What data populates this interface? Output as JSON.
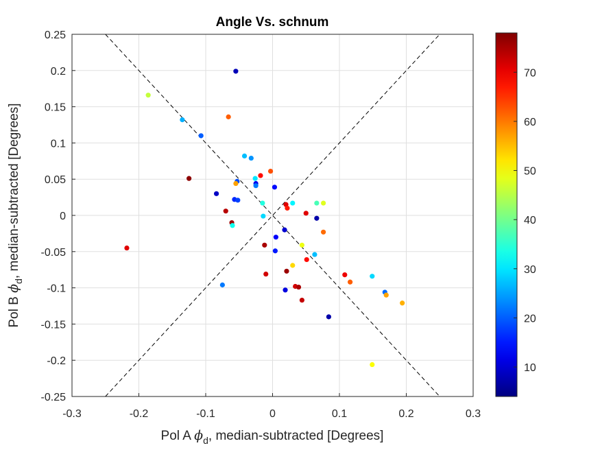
{
  "chart_data": {
    "type": "scatter",
    "title": "Angle Vs. schnum",
    "xlabel_prefix": "Pol A ",
    "xlabel_suffix": ", median-subtracted [Degrees]",
    "ylabel_prefix": "Pol B ",
    "ylabel_suffix": ", median-subtracted [Degrees]",
    "phi_symbol": "ϕ",
    "phi_subscript": "d",
    "xlim": [
      -0.3,
      0.3
    ],
    "ylim": [
      -0.25,
      0.25
    ],
    "xticks": [
      "-0.3",
      "-0.2",
      "-0.1",
      "0",
      "0.1",
      "0.2",
      "0.3"
    ],
    "xtick_values": [
      -0.3,
      -0.2,
      -0.1,
      0,
      0.1,
      0.2,
      0.3
    ],
    "yticks": [
      "0.25",
      "0.2",
      "0.15",
      "0.1",
      "0.05",
      "0",
      "-0.05",
      "-0.1",
      "-0.15",
      "-0.2",
      "-0.25"
    ],
    "ytick_values": [
      0.25,
      0.2,
      0.15,
      0.1,
      0.05,
      0,
      -0.05,
      -0.1,
      -0.15,
      -0.2,
      -0.25
    ],
    "grid": true,
    "reference_lines": [
      {
        "x": [
          -0.25,
          0.25
        ],
        "y": [
          0.25,
          -0.25
        ],
        "style": "dashed"
      },
      {
        "x": [
          -0.25,
          0.25
        ],
        "y": [
          -0.25,
          0.25
        ],
        "style": "dashed"
      }
    ],
    "colorbar": {
      "colormap": "jet",
      "range": [
        4,
        78
      ],
      "ticks": [
        "10",
        "20",
        "30",
        "40",
        "50",
        "60",
        "70"
      ],
      "tick_values": [
        10,
        20,
        30,
        40,
        50,
        60,
        70
      ]
    },
    "points": [
      {
        "x": -0.055,
        "y": 0.199,
        "c": 8
      },
      {
        "x": -0.186,
        "y": 0.166,
        "c": 46
      },
      {
        "x": -0.066,
        "y": 0.136,
        "c": 62
      },
      {
        "x": -0.135,
        "y": 0.132,
        "c": 26
      },
      {
        "x": -0.107,
        "y": 0.11,
        "c": 20
      },
      {
        "x": -0.042,
        "y": 0.082,
        "c": 27
      },
      {
        "x": -0.032,
        "y": 0.079,
        "c": 24
      },
      {
        "x": -0.125,
        "y": 0.051,
        "c": 77
      },
      {
        "x": -0.003,
        "y": 0.061,
        "c": 63
      },
      {
        "x": -0.018,
        "y": 0.055,
        "c": 68
      },
      {
        "x": -0.026,
        "y": 0.051,
        "c": 30
      },
      {
        "x": -0.053,
        "y": 0.047,
        "c": 19
      },
      {
        "x": -0.055,
        "y": 0.044,
        "c": 57
      },
      {
        "x": -0.025,
        "y": 0.044,
        "c": 12
      },
      {
        "x": -0.025,
        "y": 0.041,
        "c": 22
      },
      {
        "x": 0.003,
        "y": 0.039,
        "c": 14
      },
      {
        "x": -0.084,
        "y": 0.03,
        "c": 9
      },
      {
        "x": -0.057,
        "y": 0.022,
        "c": 16
      },
      {
        "x": -0.052,
        "y": 0.021,
        "c": 18
      },
      {
        "x": -0.015,
        "y": 0.017,
        "c": 34
      },
      {
        "x": 0.02,
        "y": 0.015,
        "c": 71
      },
      {
        "x": 0.022,
        "y": 0.01,
        "c": 67
      },
      {
        "x": 0.03,
        "y": 0.017,
        "c": 31
      },
      {
        "x": 0.066,
        "y": 0.017,
        "c": 37
      },
      {
        "x": 0.076,
        "y": 0.017,
        "c": 48
      },
      {
        "x": -0.07,
        "y": 0.006,
        "c": 74
      },
      {
        "x": 0.05,
        "y": 0.003,
        "c": 71
      },
      {
        "x": -0.014,
        "y": -0.001,
        "c": 29
      },
      {
        "x": 0.066,
        "y": -0.004,
        "c": 7
      },
      {
        "x": -0.061,
        "y": -0.01,
        "c": 76
      },
      {
        "x": -0.06,
        "y": -0.014,
        "c": 33
      },
      {
        "x": 0.018,
        "y": -0.02,
        "c": 10
      },
      {
        "x": 0.076,
        "y": -0.023,
        "c": 61
      },
      {
        "x": 0.005,
        "y": -0.03,
        "c": 13
      },
      {
        "x": -0.012,
        "y": -0.041,
        "c": 75
      },
      {
        "x": 0.044,
        "y": -0.041,
        "c": 49
      },
      {
        "x": -0.218,
        "y": -0.045,
        "c": 71
      },
      {
        "x": 0.004,
        "y": -0.049,
        "c": 15
      },
      {
        "x": 0.063,
        "y": -0.054,
        "c": 27
      },
      {
        "x": 0.051,
        "y": -0.061,
        "c": 68
      },
      {
        "x": 0.03,
        "y": -0.069,
        "c": 53
      },
      {
        "x": 0.021,
        "y": -0.077,
        "c": 76
      },
      {
        "x": -0.01,
        "y": -0.081,
        "c": 72
      },
      {
        "x": 0.108,
        "y": -0.082,
        "c": 70
      },
      {
        "x": 0.149,
        "y": -0.084,
        "c": 29
      },
      {
        "x": 0.116,
        "y": -0.092,
        "c": 62
      },
      {
        "x": -0.075,
        "y": -0.096,
        "c": 22
      },
      {
        "x": 0.034,
        "y": -0.098,
        "c": 72
      },
      {
        "x": 0.039,
        "y": -0.099,
        "c": 75
      },
      {
        "x": 0.019,
        "y": -0.103,
        "c": 11
      },
      {
        "x": 0.168,
        "y": -0.106,
        "c": 21
      },
      {
        "x": 0.17,
        "y": -0.11,
        "c": 57
      },
      {
        "x": 0.044,
        "y": -0.117,
        "c": 73
      },
      {
        "x": 0.194,
        "y": -0.121,
        "c": 56
      },
      {
        "x": 0.084,
        "y": -0.14,
        "c": 7
      },
      {
        "x": 0.149,
        "y": -0.206,
        "c": 50
      }
    ]
  }
}
